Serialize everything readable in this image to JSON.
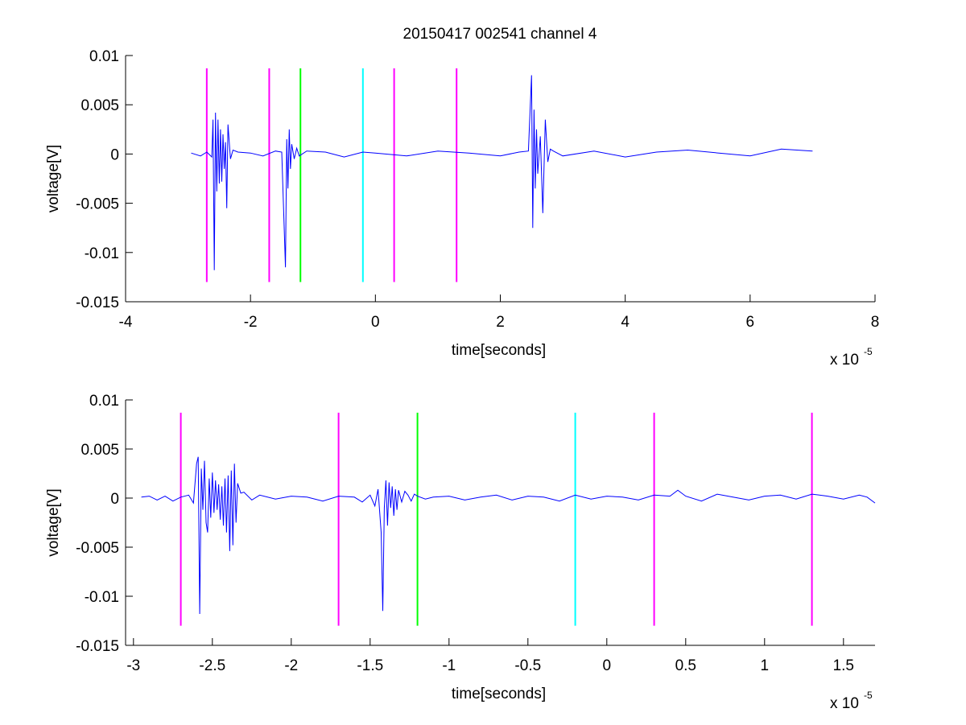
{
  "figure": {
    "title": "20150417 002541 channel 4"
  },
  "chart_data": [
    {
      "type": "line",
      "title": "20150417 002541 channel 4",
      "xlabel": "time[seconds]",
      "ylabel": "voltage[V]",
      "x_multiplier": "x 10",
      "x_multiplier_exponent": "-5",
      "xlim": [
        -4,
        8
      ],
      "ylim": [
        -0.015,
        0.01
      ],
      "x_ticks": [
        -4,
        -2,
        0,
        2,
        4,
        6,
        8
      ],
      "x_tick_labels": [
        "-4",
        "-2",
        "0",
        "2",
        "4",
        "6",
        "8"
      ],
      "y_ticks": [
        0.01,
        0.005,
        0,
        -0.005,
        -0.01,
        -0.015
      ],
      "y_tick_labels": [
        "0.01",
        "0.005",
        "0",
        "-0.005",
        "-0.01",
        "-0.015"
      ],
      "grid": false,
      "series": [
        {
          "color": "#0000ff",
          "x": [
            -2.95,
            -2.8,
            -2.7,
            -2.62,
            -2.6,
            -2.58,
            -2.56,
            -2.54,
            -2.52,
            -2.5,
            -2.48,
            -2.46,
            -2.44,
            -2.42,
            -2.4,
            -2.38,
            -2.36,
            -2.32,
            -2.28,
            -2.2,
            -2.0,
            -1.8,
            -1.6,
            -1.5,
            -1.44,
            -1.42,
            -1.4,
            -1.38,
            -1.36,
            -1.34,
            -1.3,
            -1.26,
            -1.22,
            -1.1,
            -0.8,
            -0.5,
            -0.2,
            0.0,
            0.5,
            1.0,
            1.5,
            2.0,
            2.3,
            2.45,
            2.5,
            2.52,
            2.54,
            2.56,
            2.58,
            2.6,
            2.64,
            2.68,
            2.72,
            2.76,
            2.8,
            2.85,
            3.0,
            3.5,
            4.0,
            4.5,
            5.0,
            5.5,
            6.0,
            6.5,
            7.0
          ],
          "y": [
            0.0001,
            -0.0002,
            0.0002,
            -0.0003,
            0.0035,
            -0.0118,
            0.0042,
            -0.0038,
            0.0035,
            -0.003,
            0.0025,
            -0.0028,
            0.002,
            -0.0015,
            0.0012,
            -0.0055,
            0.003,
            -0.0005,
            0.0004,
            0.0002,
            0.0001,
            -0.0002,
            0.0003,
            0.0002,
            -0.0115,
            0.0015,
            -0.0035,
            0.0025,
            -0.0015,
            0.001,
            -0.0005,
            0.0006,
            -0.0002,
            0.0003,
            0.0002,
            -0.0003,
            0.0002,
            0.0001,
            -0.0002,
            0.0003,
            0.0001,
            -0.0002,
            0.0002,
            0.0003,
            0.008,
            -0.0075,
            0.0045,
            -0.0035,
            0.0025,
            -0.002,
            0.0018,
            -0.006,
            0.0035,
            -0.0008,
            0.0005,
            0.0003,
            -0.0002,
            0.0003,
            -0.0003,
            0.0002,
            0.0004,
            0.0001,
            -0.0002,
            0.0005,
            0.0003
          ]
        }
      ],
      "markers": [
        {
          "x": -2.7,
          "color": "#ff00ff"
        },
        {
          "x": -1.7,
          "color": "#ff00ff"
        },
        {
          "x": -1.2,
          "color": "#00ff00"
        },
        {
          "x": -0.2,
          "color": "#00ffff"
        },
        {
          "x": 0.3,
          "color": "#ff00ff"
        },
        {
          "x": 1.3,
          "color": "#ff00ff"
        }
      ],
      "marker_ylim": [
        -0.013,
        0.0087
      ]
    },
    {
      "type": "line",
      "title": "",
      "xlabel": "time[seconds]",
      "ylabel": "voltage[V]",
      "x_multiplier": "x 10",
      "x_multiplier_exponent": "-5",
      "xlim": [
        -3.05,
        1.7
      ],
      "ylim": [
        -0.015,
        0.01
      ],
      "x_ticks": [
        -3,
        -2.5,
        -2,
        -1.5,
        -1,
        -0.5,
        0,
        0.5,
        1,
        1.5
      ],
      "x_tick_labels": [
        "-3",
        "-2.5",
        "-2",
        "-1.5",
        "-1",
        "-0.5",
        "0",
        "0.5",
        "1",
        "1.5"
      ],
      "y_ticks": [
        0.01,
        0.005,
        0,
        -0.005,
        -0.01,
        -0.015
      ],
      "y_tick_labels": [
        "0.01",
        "0.005",
        "0",
        "-0.005",
        "-0.01",
        "-0.015"
      ],
      "grid": false,
      "series": [
        {
          "color": "#0000ff",
          "x": [
            -2.95,
            -2.9,
            -2.85,
            -2.8,
            -2.75,
            -2.7,
            -2.65,
            -2.62,
            -2.6,
            -2.59,
            -2.58,
            -2.57,
            -2.56,
            -2.55,
            -2.54,
            -2.53,
            -2.52,
            -2.51,
            -2.5,
            -2.49,
            -2.48,
            -2.47,
            -2.46,
            -2.45,
            -2.44,
            -2.43,
            -2.42,
            -2.41,
            -2.4,
            -2.39,
            -2.38,
            -2.37,
            -2.36,
            -2.35,
            -2.34,
            -2.32,
            -2.3,
            -2.25,
            -2.2,
            -2.1,
            -2.0,
            -1.9,
            -1.8,
            -1.7,
            -1.6,
            -1.55,
            -1.5,
            -1.47,
            -1.45,
            -1.43,
            -1.42,
            -1.41,
            -1.4,
            -1.39,
            -1.38,
            -1.37,
            -1.36,
            -1.35,
            -1.34,
            -1.33,
            -1.32,
            -1.3,
            -1.28,
            -1.26,
            -1.24,
            -1.22,
            -1.2,
            -1.15,
            -1.1,
            -1.0,
            -0.9,
            -0.8,
            -0.7,
            -0.6,
            -0.5,
            -0.4,
            -0.3,
            -0.2,
            -0.1,
            0.0,
            0.1,
            0.2,
            0.3,
            0.4,
            0.45,
            0.5,
            0.6,
            0.7,
            0.8,
            0.9,
            1.0,
            1.1,
            1.2,
            1.3,
            1.4,
            1.5,
            1.6,
            1.65,
            1.7
          ],
          "y": [
            0.0001,
            0.0002,
            -0.0002,
            0.0002,
            -0.0003,
            0.0001,
            0.0003,
            -0.0005,
            0.0035,
            0.0042,
            -0.0118,
            0.003,
            -0.0012,
            0.0038,
            -0.0025,
            -0.0035,
            0.002,
            -0.002,
            0.0026,
            -0.0015,
            0.0018,
            -0.0012,
            0.0014,
            -0.0022,
            0.0012,
            -0.0028,
            0.002,
            -0.0035,
            0.0023,
            -0.0054,
            0.0028,
            -0.0048,
            0.0035,
            -0.0025,
            0.0015,
            0.0005,
            0.0006,
            -0.0002,
            0.0003,
            -0.0001,
            0.0002,
            0.0001,
            -0.0003,
            0.0002,
            0.0001,
            -0.0004,
            0.0003,
            -0.0008,
            0.0009,
            -0.0035,
            -0.0115,
            -0.001,
            0.0018,
            -0.0028,
            0.0016,
            -0.001,
            0.0012,
            -0.0018,
            0.0009,
            -0.0012,
            0.0008,
            -0.0004,
            0.0007,
            0.0003,
            -0.0003,
            0.0004,
            0.0002,
            -0.0001,
            0.0001,
            0.0002,
            -0.0002,
            0.0001,
            0.0003,
            -0.0002,
            0.0002,
            0.0001,
            -0.0003,
            0.0003,
            -0.0001,
            0.0002,
            0.0001,
            -0.0002,
            0.0003,
            0.0002,
            0.0008,
            0.0002,
            -0.0003,
            0.0004,
            0.0001,
            -0.0002,
            0.0002,
            0.0003,
            -0.0001,
            0.0004,
            0.0002,
            -0.0001,
            0.0003,
            0.0001,
            -0.0005
          ]
        }
      ],
      "markers": [
        {
          "x": -2.7,
          "color": "#ff00ff"
        },
        {
          "x": -1.7,
          "color": "#ff00ff"
        },
        {
          "x": -1.2,
          "color": "#00ff00"
        },
        {
          "x": -0.2,
          "color": "#00ffff"
        },
        {
          "x": 0.3,
          "color": "#ff00ff"
        },
        {
          "x": 1.3,
          "color": "#ff00ff"
        }
      ],
      "marker_ylim": [
        -0.013,
        0.0087
      ]
    }
  ]
}
